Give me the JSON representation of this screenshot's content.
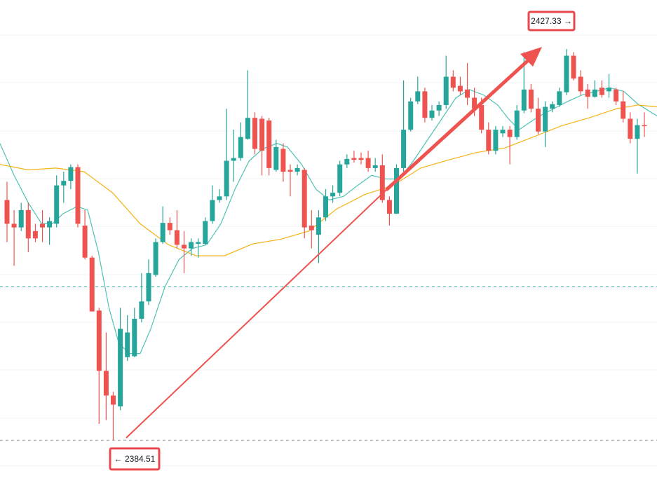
{
  "chart_data": {
    "type": "candlestick",
    "up_color": "#26a69a",
    "down_color": "#ef5350",
    "ylim": [
      2379.93,
      2432.7
    ],
    "open": [
      2410.8,
      2408.2,
      2407.8,
      2409.7,
      2407.4,
      2408.2,
      2407.8,
      2408.2,
      2412.4,
      2412.9,
      2414.4,
      2408.0,
      2404.5,
      2398.7,
      2392.1,
      2389.4,
      2388.2,
      2393.6,
      2393.7,
      2397.8,
      2399.7,
      2402.6,
      2406.2,
      2408.3,
      2407.5,
      2405.9,
      2405.5,
      2406.0,
      2406.0,
      2408.5,
      2410.8,
      2411.2,
      2415.1,
      2415.4,
      2417.5,
      2419.8,
      2419.7,
      2419.5,
      2414.1,
      2416.4,
      2414.1,
      2413.9,
      2414.1,
      2408.0,
      2407.0,
      2408.9,
      2411.2,
      2411.6,
      2414.7,
      2415.4,
      2415.4,
      2415.4,
      2414.3,
      2414.6,
      2410.8,
      2409.3,
      2414.3,
      2418.5,
      2421.6,
      2422.7,
      2419.8,
      2420.6,
      2421.2,
      2424.3,
      2423.3,
      2422.9,
      2422.0,
      2421.2,
      2418.5,
      2416.2,
      2418.1,
      2418.5,
      2417.7,
      2420.6,
      2422.9,
      2420.8,
      2418.3,
      2420.8,
      2421.2,
      2422.6,
      2426.6,
      2424.3,
      2422.9,
      2422.1,
      2423.1,
      2422.7,
      2422.9,
      2421.6,
      2419.7,
      2417.5,
      2419.0
    ],
    "high": [
      2412.8,
      2409.7,
      2410.5,
      2410.5,
      2408.2,
      2409.7,
      2408.9,
      2413.5,
      2413.9,
      2414.7,
      2414.7,
      2409.7,
      2404.7,
      2399.0,
      2396.3,
      2389.8,
      2399.0,
      2398.2,
      2399.0,
      2402.8,
      2404.3,
      2406.6,
      2410.1,
      2408.9,
      2409.7,
      2407.4,
      2406.6,
      2406.6,
      2408.9,
      2412.4,
      2412.0,
      2420.8,
      2418.5,
      2419.3,
      2425.0,
      2420.4,
      2420.0,
      2419.8,
      2417.4,
      2417.0,
      2414.7,
      2414.7,
      2414.3,
      2409.7,
      2409.7,
      2412.0,
      2412.4,
      2415.1,
      2415.8,
      2416.2,
      2416.0,
      2416.2,
      2415.4,
      2415.8,
      2411.2,
      2414.7,
      2423.9,
      2422.0,
      2424.3,
      2423.1,
      2421.2,
      2421.6,
      2426.6,
      2425.0,
      2424.3,
      2425.8,
      2423.1,
      2422.0,
      2419.3,
      2418.9,
      2418.9,
      2418.9,
      2421.2,
      2427.0,
      2423.5,
      2422.0,
      2421.6,
      2421.6,
      2423.1,
      2427.33,
      2427.0,
      2425.0,
      2423.5,
      2423.9,
      2423.9,
      2424.6,
      2423.1,
      2422.7,
      2420.4,
      2419.7,
      2420.4
    ],
    "low": [
      2406.2,
      2403.6,
      2407.4,
      2405.1,
      2406.2,
      2406.2,
      2405.9,
      2407.8,
      2410.5,
      2412.0,
      2407.8,
      2404.3,
      2398.6,
      2386.3,
      2386.7,
      2384.51,
      2387.8,
      2393.2,
      2393.6,
      2397.4,
      2399.3,
      2402.4,
      2406.0,
      2407.0,
      2405.5,
      2402.8,
      2404.7,
      2404.5,
      2405.9,
      2408.2,
      2410.5,
      2410.8,
      2412.8,
      2415.1,
      2417.4,
      2415.8,
      2413.5,
      2413.5,
      2413.9,
      2412.8,
      2411.2,
      2413.5,
      2406.6,
      2405.5,
      2403.9,
      2408.5,
      2410.5,
      2411.2,
      2414.3,
      2414.9,
      2414.7,
      2413.9,
      2413.9,
      2410.5,
      2408.0,
      2409.3,
      2413.9,
      2418.3,
      2421.3,
      2419.3,
      2419.5,
      2420.0,
      2420.8,
      2422.7,
      2422.3,
      2421.2,
      2420.0,
      2418.1,
      2415.8,
      2415.8,
      2417.7,
      2414.7,
      2417.4,
      2420.3,
      2420.4,
      2418.0,
      2416.6,
      2420.4,
      2421.0,
      2422.3,
      2423.9,
      2422.3,
      2420.8,
      2422.0,
      2422.0,
      2422.0,
      2421.2,
      2419.3,
      2417.0,
      2413.7,
      2417.7
    ],
    "close": [
      2408.2,
      2407.8,
      2409.7,
      2406.6,
      2406.6,
      2407.8,
      2408.5,
      2412.4,
      2412.9,
      2414.4,
      2408.2,
      2404.5,
      2398.6,
      2392.1,
      2389.4,
      2388.4,
      2396.7,
      2396.3,
      2397.8,
      2399.7,
      2402.8,
      2406.2,
      2408.3,
      2407.5,
      2405.9,
      2405.5,
      2406.2,
      2406.2,
      2408.5,
      2410.8,
      2411.2,
      2415.1,
      2415.4,
      2417.7,
      2419.8,
      2416.4,
      2416.2,
      2414.3,
      2416.6,
      2413.9,
      2413.9,
      2414.3,
      2407.8,
      2407.5,
      2408.9,
      2411.2,
      2411.6,
      2414.7,
      2415.3,
      2415.2,
      2415.2,
      2414.3,
      2414.6,
      2410.8,
      2409.3,
      2414.3,
      2418.5,
      2421.6,
      2422.7,
      2419.8,
      2420.6,
      2421.2,
      2424.3,
      2423.1,
      2422.7,
      2422.0,
      2420.8,
      2418.5,
      2416.2,
      2418.5,
      2418.5,
      2417.7,
      2420.6,
      2422.9,
      2420.8,
      2418.3,
      2421.0,
      2421.3,
      2422.7,
      2426.6,
      2424.1,
      2422.7,
      2422.1,
      2422.9,
      2422.3,
      2423.1,
      2421.6,
      2419.7,
      2417.5,
      2419.0,
      2418.9
    ],
    "lines": [
      {
        "color": "#4fc3b5",
        "x": [
          -1.0,
          1.0,
          3.0,
          4.9,
          6.4,
          7.9,
          9.9,
          11.4,
          12.9,
          14.4,
          15.8,
          17.3,
          18.8,
          20.3,
          22.3,
          24.3,
          26.2,
          28.2,
          30.2,
          32.2,
          34.2,
          36.1,
          38.1,
          39.6,
          41.6,
          43.6,
          45.5,
          47.5,
          49.5,
          51.5,
          53.5,
          55.4,
          57.4,
          59.4,
          61.4,
          63.4,
          65.3,
          67.3,
          69.3,
          70.8,
          72.3,
          73.8,
          75.2,
          77.2,
          79.2,
          81.2,
          83.2,
          85.1,
          87.1,
          89.1,
          91.8
        ],
        "values": [
          2417.0,
          2413.5,
          2410.5,
          2408.2,
          2408.2,
          2409.3,
          2410.1,
          2409.7,
          2405.1,
          2399.0,
          2395.1,
          2394.0,
          2394.0,
          2396.7,
          2401.3,
          2404.3,
          2405.5,
          2405.9,
          2408.2,
          2412.0,
          2415.1,
          2416.4,
          2417.0,
          2416.6,
          2414.7,
          2412.0,
          2410.8,
          2411.2,
          2412.4,
          2413.5,
          2413.1,
          2413.1,
          2415.1,
          2417.4,
          2419.7,
          2422.0,
          2422.9,
          2422.3,
          2421.2,
          2419.7,
          2418.5,
          2419.3,
          2420.0,
          2420.8,
          2421.6,
          2422.3,
          2422.7,
          2423.1,
          2422.7,
          2421.3,
          2420.0
        ]
      },
      {
        "color": "#f5b316",
        "x": [
          -1.0,
          3.0,
          6.9,
          10.9,
          14.9,
          18.8,
          22.8,
          26.7,
          30.7,
          34.7,
          38.6,
          42.6,
          46.5,
          50.5,
          54.5,
          58.4,
          62.4,
          66.3,
          70.3,
          74.3,
          78.2,
          82.2,
          86.1,
          89.1,
          91.8
        ],
        "values": [
          2414.7,
          2414.1,
          2414.3,
          2413.9,
          2411.6,
          2408.2,
          2405.9,
          2404.7,
          2404.7,
          2406.0,
          2406.5,
          2407.4,
          2409.8,
          2411.4,
          2412.4,
          2414.3,
          2415.2,
          2416.0,
          2416.5,
          2417.7,
          2418.9,
          2419.8,
          2420.8,
          2421.2,
          2421.0
        ]
      }
    ],
    "levels": [
      {
        "value": 2401.3,
        "color": "#26a69a"
      },
      {
        "value": 2384.51,
        "color": "#9598a1"
      }
    ],
    "price_labels": {
      "values": [
        2427.33,
        2384.51
      ],
      "value_labels": [
        "2427.33 →",
        "← 2384.51"
      ]
    }
  }
}
